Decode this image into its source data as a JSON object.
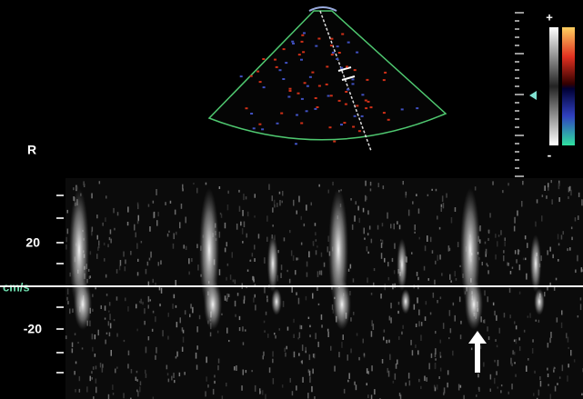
{
  "color_bar": {
    "top_sign": "+",
    "bottom_sign": "-"
  },
  "orientation_marker": "R",
  "velocity_scale": {
    "upper_label": "20",
    "unit": "cm/s",
    "lower_label": "-20"
  }
}
